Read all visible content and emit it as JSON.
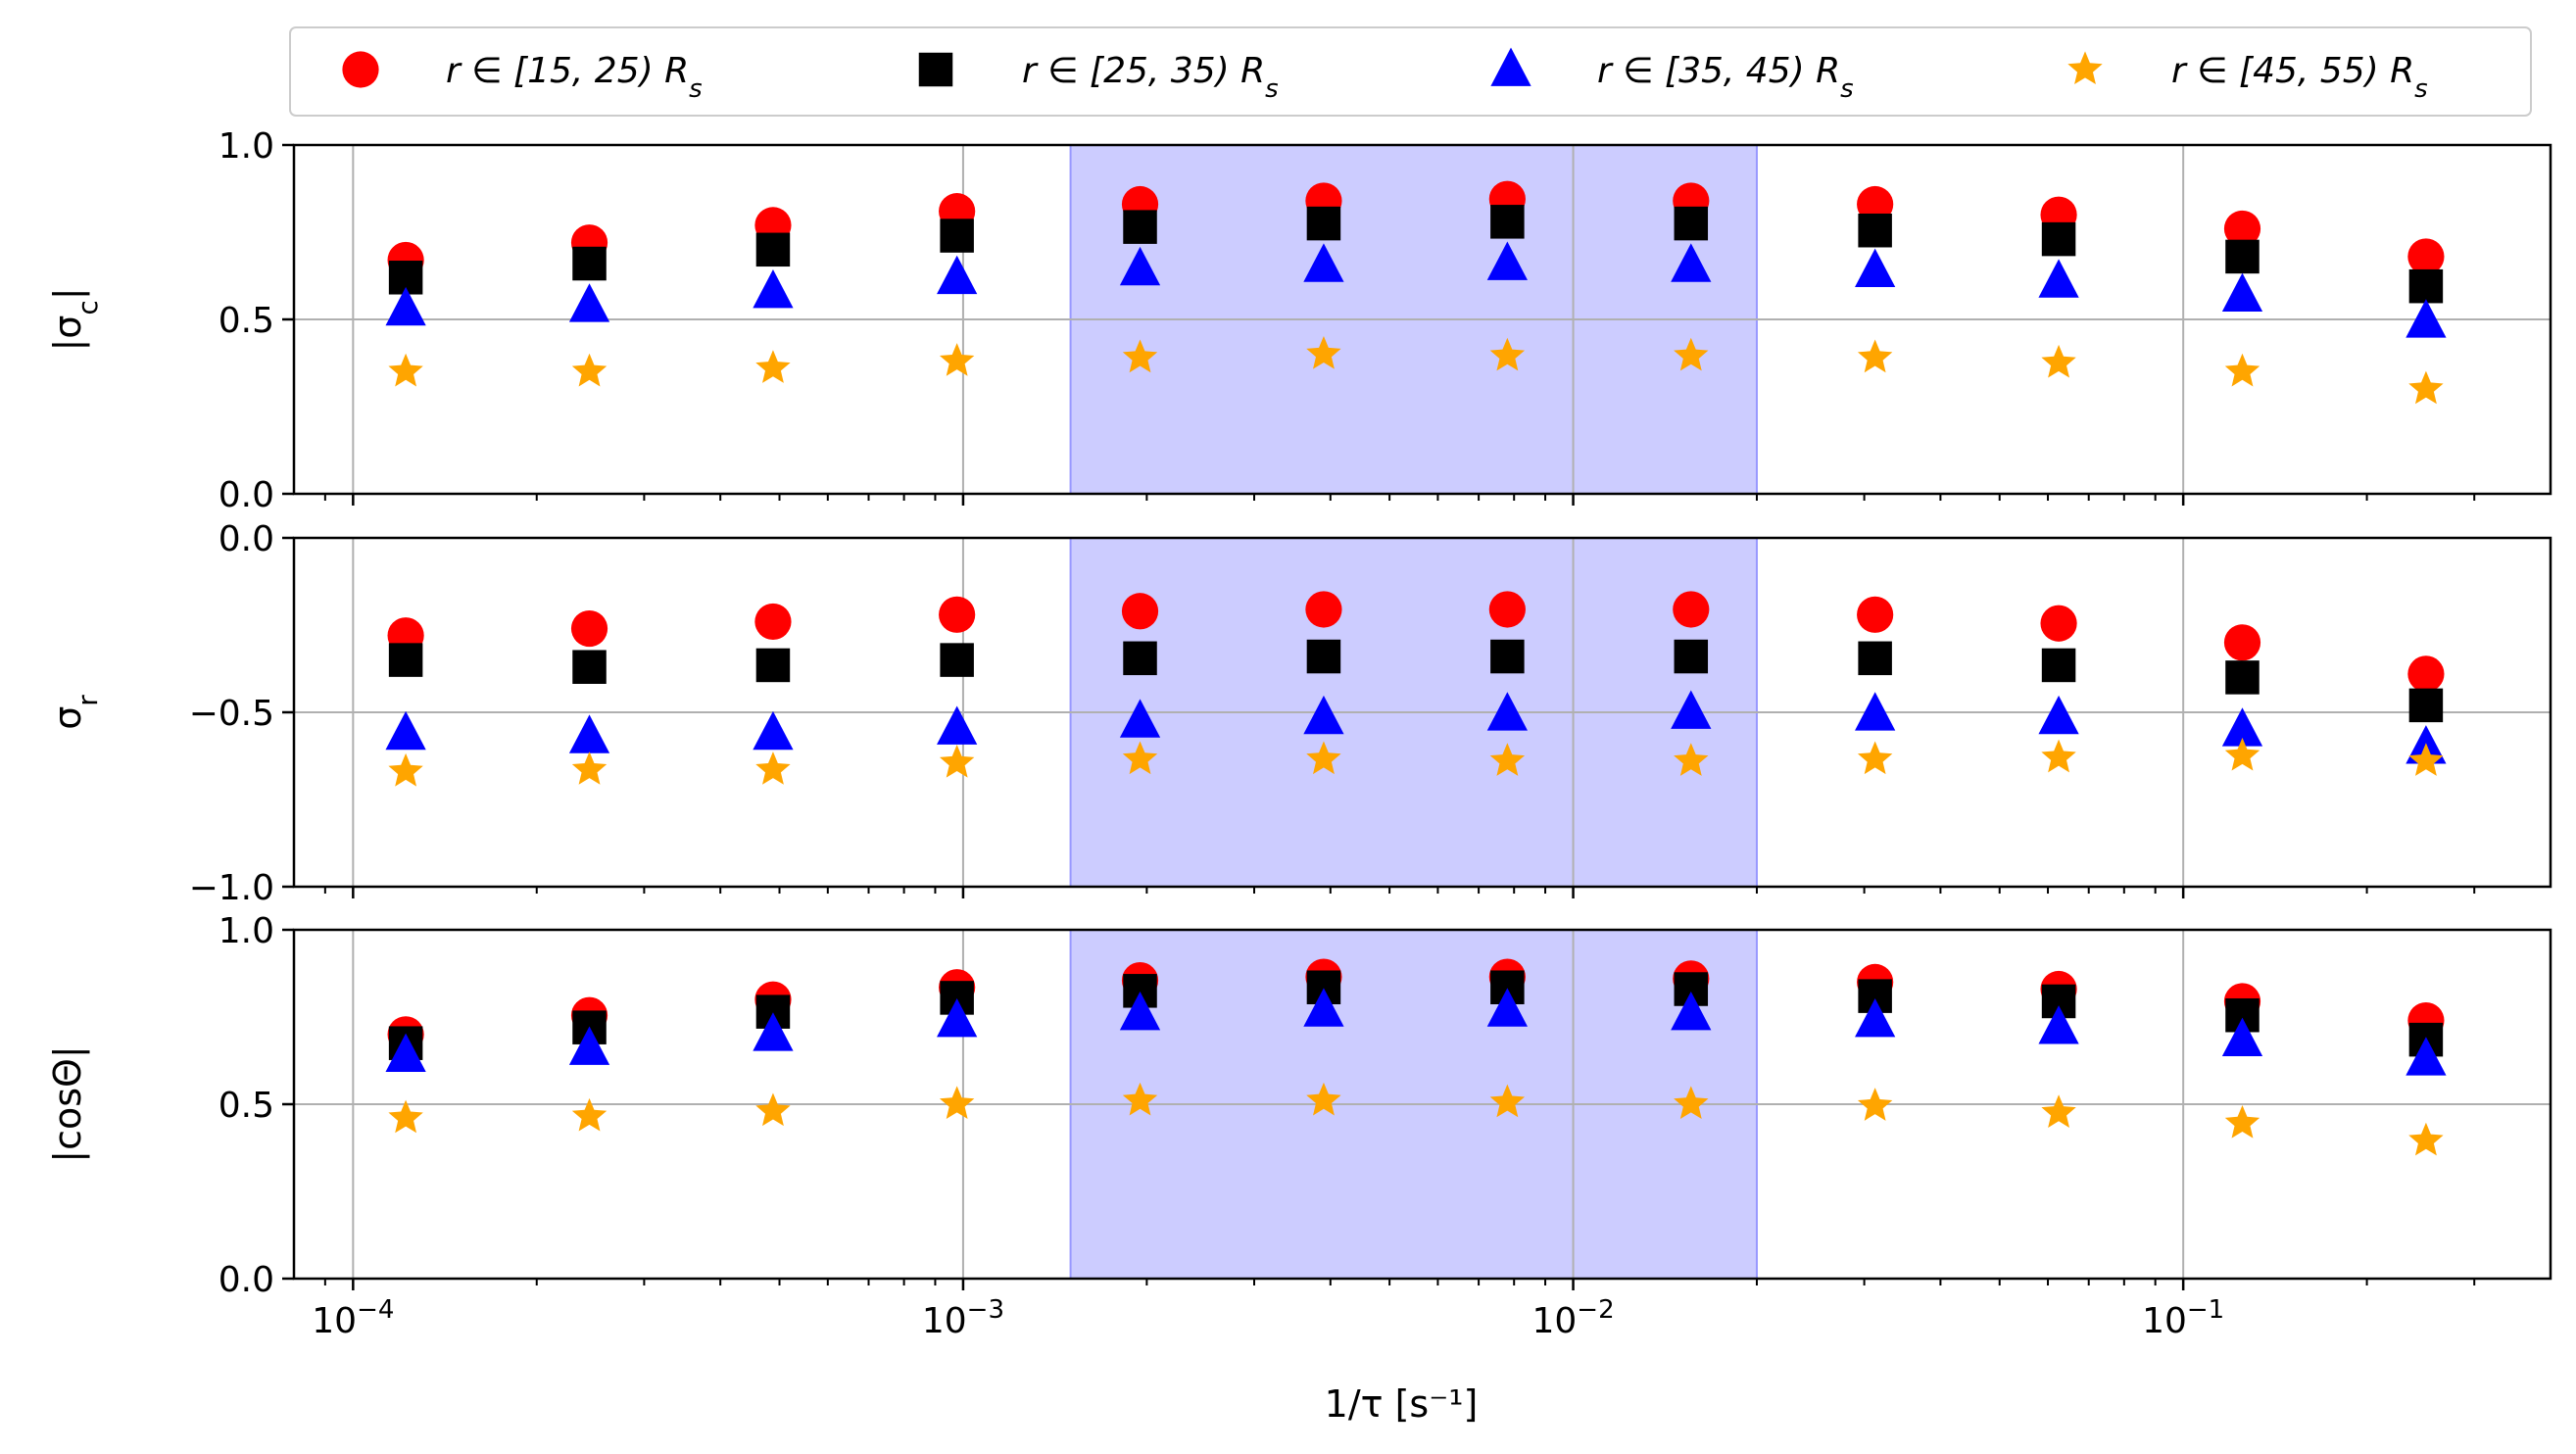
{
  "chart_data": {
    "type": "scatter",
    "x_scale": "log",
    "xlim": [
      8e-05,
      0.4
    ],
    "xlabel": "1/τ [s⁻¹]",
    "x_tick_labels": [
      {
        "value": 0.0001,
        "base": "10",
        "exp": "−4"
      },
      {
        "value": 0.001,
        "base": "10",
        "exp": "−3"
      },
      {
        "value": 0.01,
        "base": "10",
        "exp": "−2"
      },
      {
        "value": 0.1,
        "base": "10",
        "exp": "−1"
      }
    ],
    "x": [
      0.000122,
      0.000244,
      0.000488,
      0.000977,
      0.00195,
      0.0039,
      0.0078,
      0.0156,
      0.03125,
      0.0625,
      0.125,
      0.25
    ],
    "shaded_region": {
      "x_range": [
        0.0015,
        0.02
      ],
      "color": "#ccccff",
      "edge_color": "#9999ff"
    },
    "legend": {
      "placement": "top, above plots",
      "entries": [
        {
          "text_pre": "r ∈ [15, 25) R",
          "sub": "s",
          "series_index": 0
        },
        {
          "text_pre": "r ∈ [25, 35) R",
          "sub": "s",
          "series_index": 1
        },
        {
          "text_pre": "r ∈ [35, 45) R",
          "sub": "s",
          "series_index": 2
        },
        {
          "text_pre": "r ∈ [45, 55) R",
          "sub": "s",
          "series_index": 3
        }
      ]
    },
    "series_style": [
      {
        "name": "r ∈ [15, 25) R_s",
        "marker": "circle",
        "color": "#ff0000"
      },
      {
        "name": "r ∈ [25, 35) R_s",
        "marker": "square",
        "color": "#000000"
      },
      {
        "name": "r ∈ [35, 45) R_s",
        "marker": "triangle",
        "color": "#0000ff"
      },
      {
        "name": "r ∈ [45, 55) R_s",
        "marker": "star",
        "color": "#ffa500"
      }
    ],
    "panels": [
      {
        "ylabel_main": "|σ",
        "ylabel_sub": "c",
        "ylabel_end": "|",
        "ylim": [
          0.0,
          1.0
        ],
        "y_ticks": [
          0.0,
          0.5,
          1.0
        ],
        "y_tick_labels": [
          "0.0",
          "0.5",
          "1.0"
        ],
        "series": [
          {
            "name": "r ∈ [15, 25) R_s",
            "values": [
              0.67,
              0.72,
              0.77,
              0.81,
              0.83,
              0.84,
              0.845,
              0.84,
              0.83,
              0.8,
              0.76,
              0.68
            ]
          },
          {
            "name": "r ∈ [25, 35) R_s",
            "values": [
              0.62,
              0.66,
              0.7,
              0.74,
              0.765,
              0.775,
              0.78,
              0.775,
              0.755,
              0.73,
              0.68,
              0.595
            ]
          },
          {
            "name": "r ∈ [35, 45) R_s",
            "values": [
              0.53,
              0.54,
              0.58,
              0.62,
              0.645,
              0.655,
              0.66,
              0.655,
              0.64,
              0.61,
              0.57,
              0.495
            ]
          },
          {
            "name": "r ∈ [45, 55) R_s",
            "values": [
              0.35,
              0.35,
              0.36,
              0.38,
              0.39,
              0.4,
              0.395,
              0.395,
              0.39,
              0.375,
              0.35,
              0.3
            ]
          }
        ]
      },
      {
        "ylabel_main": "σ",
        "ylabel_sub": "r",
        "ylabel_end": "",
        "ylim": [
          -1.0,
          0.0
        ],
        "y_ticks": [
          -1.0,
          -0.5,
          0.0
        ],
        "y_tick_labels": [
          "−1.0",
          "−0.5",
          "0.0"
        ],
        "series": [
          {
            "name": "r ∈ [15, 25) R_s",
            "values": [
              -0.28,
              -0.26,
              -0.24,
              -0.22,
              -0.21,
              -0.205,
              -0.205,
              -0.205,
              -0.22,
              -0.245,
              -0.3,
              -0.39
            ]
          },
          {
            "name": "r ∈ [25, 35) R_s",
            "values": [
              -0.35,
              -0.37,
              -0.365,
              -0.35,
              -0.345,
              -0.34,
              -0.34,
              -0.34,
              -0.345,
              -0.365,
              -0.4,
              -0.48
            ]
          },
          {
            "name": "r ∈ [35, 45) R_s",
            "values": [
              -0.56,
              -0.57,
              -0.56,
              -0.545,
              -0.525,
              -0.515,
              -0.505,
              -0.5,
              -0.505,
              -0.515,
              -0.55,
              -0.6
            ]
          },
          {
            "name": "r ∈ [45, 55) R_s",
            "values": [
              -0.67,
              -0.665,
              -0.665,
              -0.645,
              -0.635,
              -0.635,
              -0.64,
              -0.64,
              -0.635,
              -0.63,
              -0.625,
              -0.64
            ]
          }
        ]
      },
      {
        "ylabel_main": "|cosΘ|",
        "ylabel_sub": "",
        "ylabel_end": "",
        "ylim": [
          0.0,
          1.0
        ],
        "y_ticks": [
          0.0,
          0.5,
          1.0
        ],
        "y_tick_labels": [
          "0.0",
          "0.5",
          "1.0"
        ],
        "series": [
          {
            "name": "r ∈ [15, 25) R_s",
            "values": [
              0.7,
              0.755,
              0.8,
              0.835,
              0.855,
              0.865,
              0.865,
              0.86,
              0.85,
              0.83,
              0.795,
              0.74
            ]
          },
          {
            "name": "r ∈ [25, 35) R_s",
            "values": [
              0.675,
              0.72,
              0.765,
              0.805,
              0.825,
              0.835,
              0.835,
              0.83,
              0.81,
              0.795,
              0.755,
              0.685
            ]
          },
          {
            "name": "r ∈ [35, 45) R_s",
            "values": [
              0.64,
              0.66,
              0.7,
              0.74,
              0.76,
              0.77,
              0.77,
              0.76,
              0.74,
              0.72,
              0.685,
              0.63
            ]
          },
          {
            "name": "r ∈ [45, 55) R_s",
            "values": [
              0.46,
              0.465,
              0.48,
              0.5,
              0.51,
              0.51,
              0.505,
              0.5,
              0.495,
              0.475,
              0.445,
              0.395
            ]
          }
        ]
      }
    ]
  }
}
